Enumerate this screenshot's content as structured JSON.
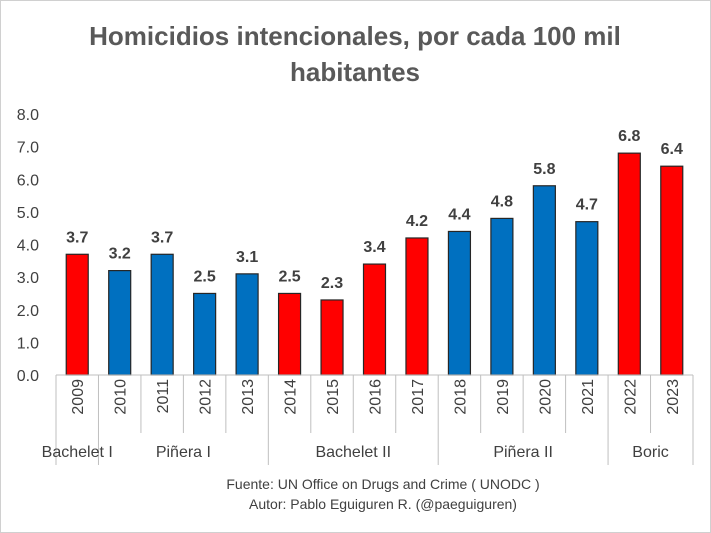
{
  "chart_data": {
    "type": "bar",
    "title_lines": [
      "Homicidios intencionales, por cada 100 mil",
      "habitantes"
    ],
    "categories": [
      "2009",
      "2010",
      "2011",
      "2012",
      "2013",
      "2014",
      "2015",
      "2016",
      "2017",
      "2018",
      "2019",
      "2020",
      "2021",
      "2022",
      "2023"
    ],
    "values": [
      3.7,
      3.2,
      3.7,
      2.5,
      3.1,
      2.5,
      2.3,
      3.4,
      4.2,
      4.4,
      4.8,
      5.8,
      4.7,
      6.8,
      6.4
    ],
    "value_labels": [
      "3.7",
      "3.2",
      "3.7",
      "2.5",
      "3.1",
      "2.5",
      "2.3",
      "3.4",
      "4.2",
      "4.4",
      "4.8",
      "5.8",
      "4.7",
      "6.8",
      "6.4"
    ],
    "colors": [
      "red",
      "blue",
      "blue",
      "blue",
      "blue",
      "red",
      "red",
      "red",
      "red",
      "blue",
      "blue",
      "blue",
      "blue",
      "red",
      "red"
    ],
    "color_map": {
      "red": "#ff0000",
      "blue": "#0070c0"
    },
    "ylim": [
      0,
      8
    ],
    "yticks": [
      "0.0",
      "1.0",
      "2.0",
      "3.0",
      "4.0",
      "5.0",
      "6.0",
      "7.0",
      "8.0"
    ],
    "groups": [
      {
        "label": "Bachelet I",
        "start": 0,
        "end": 0
      },
      {
        "label": "Piñera I",
        "start": 1,
        "end": 4
      },
      {
        "label": "Bachelet II",
        "start": 5,
        "end": 8
      },
      {
        "label": "Piñera II",
        "start": 9,
        "end": 12
      },
      {
        "label": "Boric",
        "start": 13,
        "end": 14
      }
    ],
    "xlabel": "",
    "ylabel": "",
    "grid": false,
    "legend": "none"
  },
  "footer": {
    "source": "Fuente: UN Office on Drugs and Crime ( UNODC )",
    "author": "Autor: Pablo Eguiguren R. (@paeguiguren)"
  }
}
